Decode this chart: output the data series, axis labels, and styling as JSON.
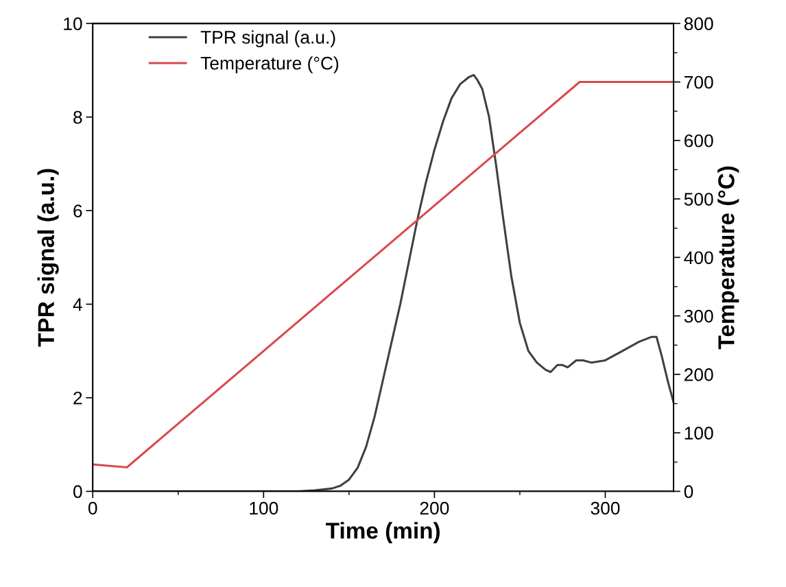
{
  "chart_data": {
    "type": "line",
    "xlabel": "Time (min)",
    "ylabel": "TPR signal (a.u.)",
    "y2label": "Temperature (°C)",
    "xlim": [
      0,
      340
    ],
    "xticks": [
      0,
      {
        "value": 50,
        "label": null
      },
      100,
      {
        "value": 150,
        "label": null
      },
      200,
      {
        "value": 250,
        "label": null
      },
      300
    ],
    "ylim": [
      0,
      10
    ],
    "yticks": [
      0,
      2,
      4,
      6,
      8,
      10
    ],
    "y2lim": [
      0,
      800
    ],
    "y2ticks": [
      0,
      {
        "value": 50,
        "label": null
      },
      100,
      {
        "value": 150,
        "label": null
      },
      200,
      {
        "value": 250,
        "label": null
      },
      300,
      {
        "value": 350,
        "label": null
      },
      400,
      {
        "value": 450,
        "label": null
      },
      500,
      {
        "value": 550,
        "label": null
      },
      600,
      {
        "value": 650,
        "label": null
      },
      700,
      {
        "value": 750,
        "label": null
      },
      800
    ],
    "legend": "top left",
    "grid": false,
    "marker": "none",
    "line_style": "solid",
    "series": [
      {
        "name": "TPR signal (a.u.)",
        "color": "#404040",
        "x": [
          0,
          50,
          100,
          120,
          130,
          140,
          145,
          150,
          155,
          160,
          165,
          170,
          175,
          180,
          185,
          190,
          195,
          200,
          205,
          210,
          215,
          220,
          223,
          225,
          228,
          232,
          236,
          240,
          245,
          250,
          255,
          260,
          265,
          268,
          272,
          275,
          278,
          283,
          287,
          292,
          300,
          310,
          320,
          327,
          330,
          333,
          337,
          340
        ],
        "values": [
          0,
          0,
          0,
          0,
          0.02,
          0.06,
          0.12,
          0.25,
          0.5,
          0.95,
          1.6,
          2.4,
          3.2,
          4.0,
          4.9,
          5.8,
          6.6,
          7.3,
          7.9,
          8.4,
          8.7,
          8.85,
          8.9,
          8.8,
          8.6,
          8.0,
          7.0,
          5.9,
          4.6,
          3.6,
          3.0,
          2.75,
          2.6,
          2.55,
          2.7,
          2.7,
          2.65,
          2.8,
          2.8,
          2.75,
          2.8,
          3.0,
          3.2,
          3.3,
          3.3,
          2.9,
          2.3,
          1.9
        ]
      },
      {
        "name": "Temperature (°C)",
        "color": "#d94a4f",
        "axis": "y2",
        "x": [
          0,
          20,
          285,
          340
        ],
        "values": [
          46,
          41,
          700,
          700
        ]
      }
    ]
  }
}
